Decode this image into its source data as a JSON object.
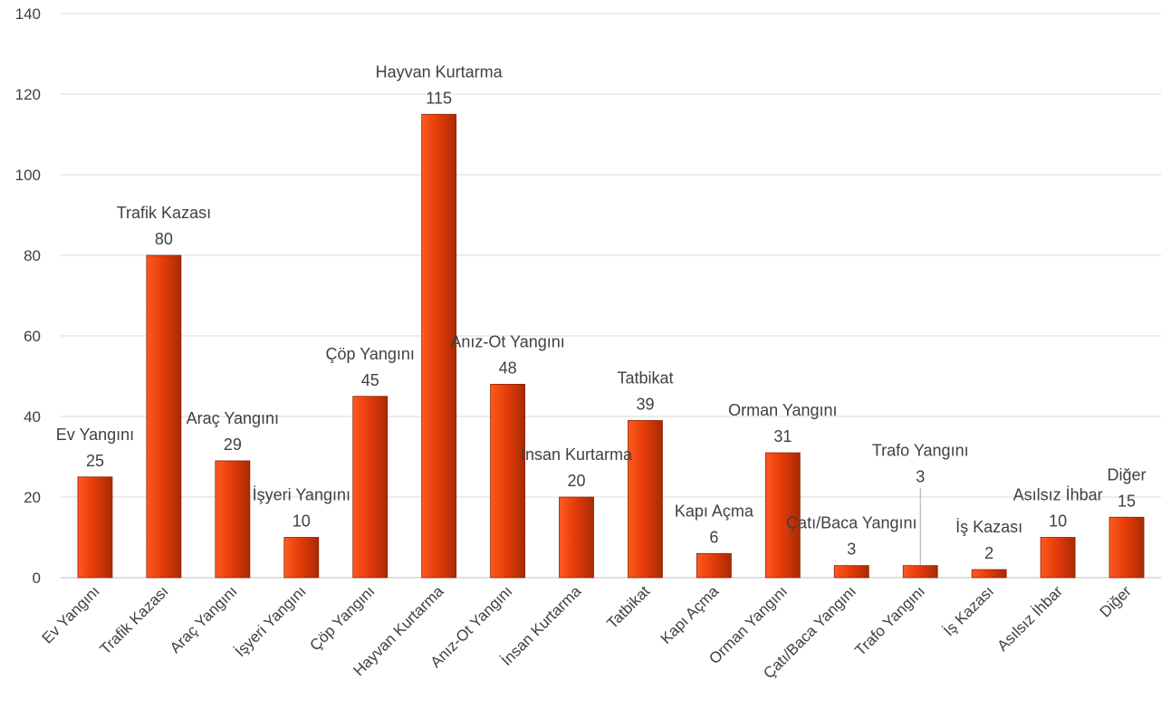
{
  "chart_data": {
    "type": "bar",
    "categories": [
      "Ev Yangını",
      "Trafik Kazası",
      "Araç Yangını",
      "İşyeri Yangını",
      "Çöp Yangını",
      "Hayvan Kurtarma",
      "Anız-Ot Yangını",
      "İnsan Kurtarma",
      "Tatbikat",
      "Kapı Açma",
      "Orman Yangını",
      "Çatı/Baca Yangını",
      "Trafo Yangını",
      "İş Kazası",
      "Asılsız İhbar",
      "Diğer"
    ],
    "values": [
      25,
      80,
      29,
      10,
      45,
      115,
      48,
      20,
      39,
      6,
      31,
      3,
      3,
      2,
      10,
      15
    ],
    "ylim": [
      0,
      140
    ],
    "yticks": [
      0,
      20,
      40,
      60,
      80,
      100,
      120,
      140
    ],
    "grid": true,
    "legend": "none",
    "data_labels": "category name and value above each bar",
    "title": "",
    "xlabel": "",
    "ylabel": ""
  },
  "colors": {
    "bar_light": "#ff5a1f",
    "bar_main": "#e63c0a",
    "bar_dark": "#a82a04",
    "bar_edge": "#8a2303",
    "grid": "#d9d9d9",
    "text": "#404040"
  }
}
